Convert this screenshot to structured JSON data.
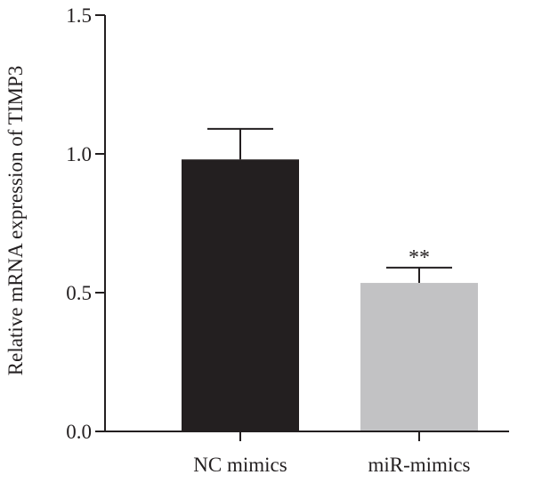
{
  "chart_data": {
    "type": "bar",
    "title": "",
    "xlabel": "",
    "ylabel": "Relative mRNA expression of TIMP3",
    "ylim": [
      0,
      1.5
    ],
    "yticks": [
      "0.0",
      "0.5",
      "1.0",
      "1.5"
    ],
    "ytick_values": [
      0,
      0.5,
      1.0,
      1.5
    ],
    "categories": [
      "NC mimics",
      "miR-mimics"
    ],
    "values": [
      0.98,
      0.535
    ],
    "errors": [
      0.11,
      0.055
    ],
    "bar_colors": [
      "#231f20",
      "#c2c2c4"
    ],
    "annotations": [
      "",
      "**"
    ],
    "grid": false,
    "legend": "none"
  }
}
